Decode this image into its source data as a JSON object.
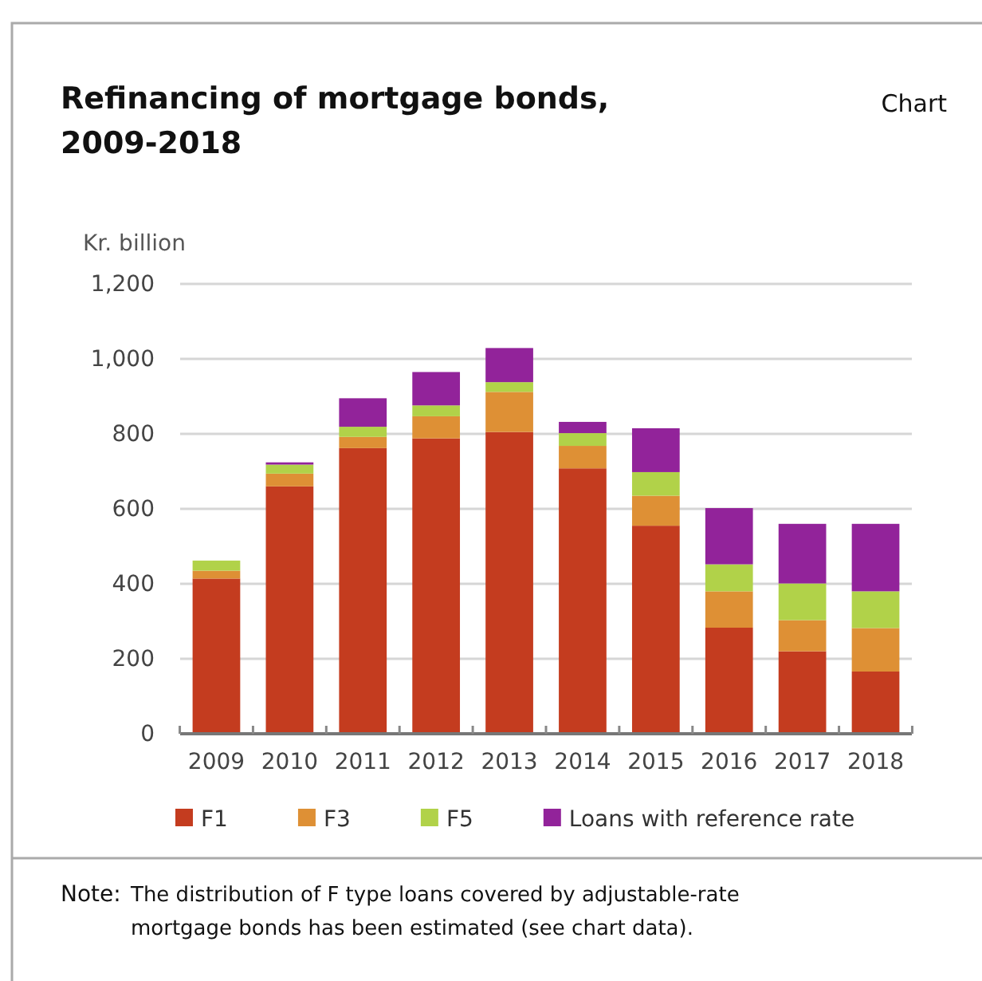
{
  "chart_data": {
    "type": "bar",
    "title": "Refinancing of mortgage bonds, 2009-2018",
    "ylabel": "Kr. billion",
    "stacked": true,
    "grid": "y",
    "legend": "bottom",
    "annotations": [
      "Chart",
      "Note:",
      "The distribution of F type loans covered by adjustable-rate mortgage bonds has been estimated (see chart data)."
    ],
    "categories": [
      "2009",
      "2010",
      "2011",
      "2012",
      "2013",
      "2014",
      "2015",
      "2016",
      "2017",
      "2018"
    ],
    "ylim": [
      0,
      1200
    ],
    "yticks": [
      0,
      {
        "value": 200,
        "label": "200"
      },
      {
        "value": 400,
        "label": "400"
      },
      {
        "value": 600,
        "label": "600"
      },
      {
        "value": 800,
        "label": "800"
      },
      {
        "value": 1000,
        "label": "1,000"
      },
      {
        "value": 1200,
        "label": "1,200"
      }
    ],
    "series": [
      {
        "name": "F1",
        "color": "#c43c1f",
        "values": [
          414,
          660,
          762,
          788,
          805,
          708,
          555,
          283,
          220,
          166
        ]
      },
      {
        "name": "F3",
        "color": "#de9035",
        "values": [
          21,
          34,
          30,
          59,
          107,
          60,
          80,
          97,
          83,
          116
        ]
      },
      {
        "name": "F5",
        "color": "#b1d249",
        "values": [
          27,
          24,
          27,
          29,
          26,
          34,
          63,
          72,
          98,
          98
        ]
      },
      {
        "name": "Loans with reference rate",
        "color": "#92239a",
        "values": [
          0,
          6,
          76,
          89,
          91,
          30,
          117,
          150,
          159,
          180
        ]
      }
    ]
  }
}
